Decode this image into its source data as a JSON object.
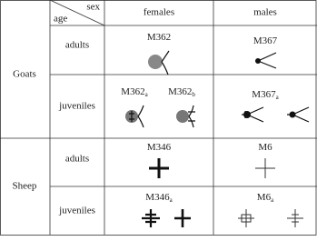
{
  "header": {
    "sex": "sex",
    "age": "age",
    "columns": [
      "females",
      "males"
    ]
  },
  "groups": [
    {
      "species": "Goats",
      "rows": [
        {
          "age": "adults",
          "females": [
            {
              "id": "M362"
            }
          ],
          "males": [
            {
              "id": "M367"
            }
          ]
        },
        {
          "age": "juveniles",
          "females": [
            {
              "id": "M362",
              "sub": "a"
            },
            {
              "id": "M362",
              "sub": "b"
            }
          ],
          "males": [
            {
              "id": "M367",
              "sub": "a"
            }
          ]
        }
      ]
    },
    {
      "species": "Sheep",
      "rows": [
        {
          "age": "adults",
          "females": [
            {
              "id": "M346"
            }
          ],
          "males": [
            {
              "id": "M6"
            }
          ]
        },
        {
          "age": "juveniles",
          "females": [
            {
              "id": "M346",
              "sub": "a"
            }
          ],
          "males": [
            {
              "id": "M6",
              "sub": "a"
            }
          ]
        }
      ]
    }
  ]
}
